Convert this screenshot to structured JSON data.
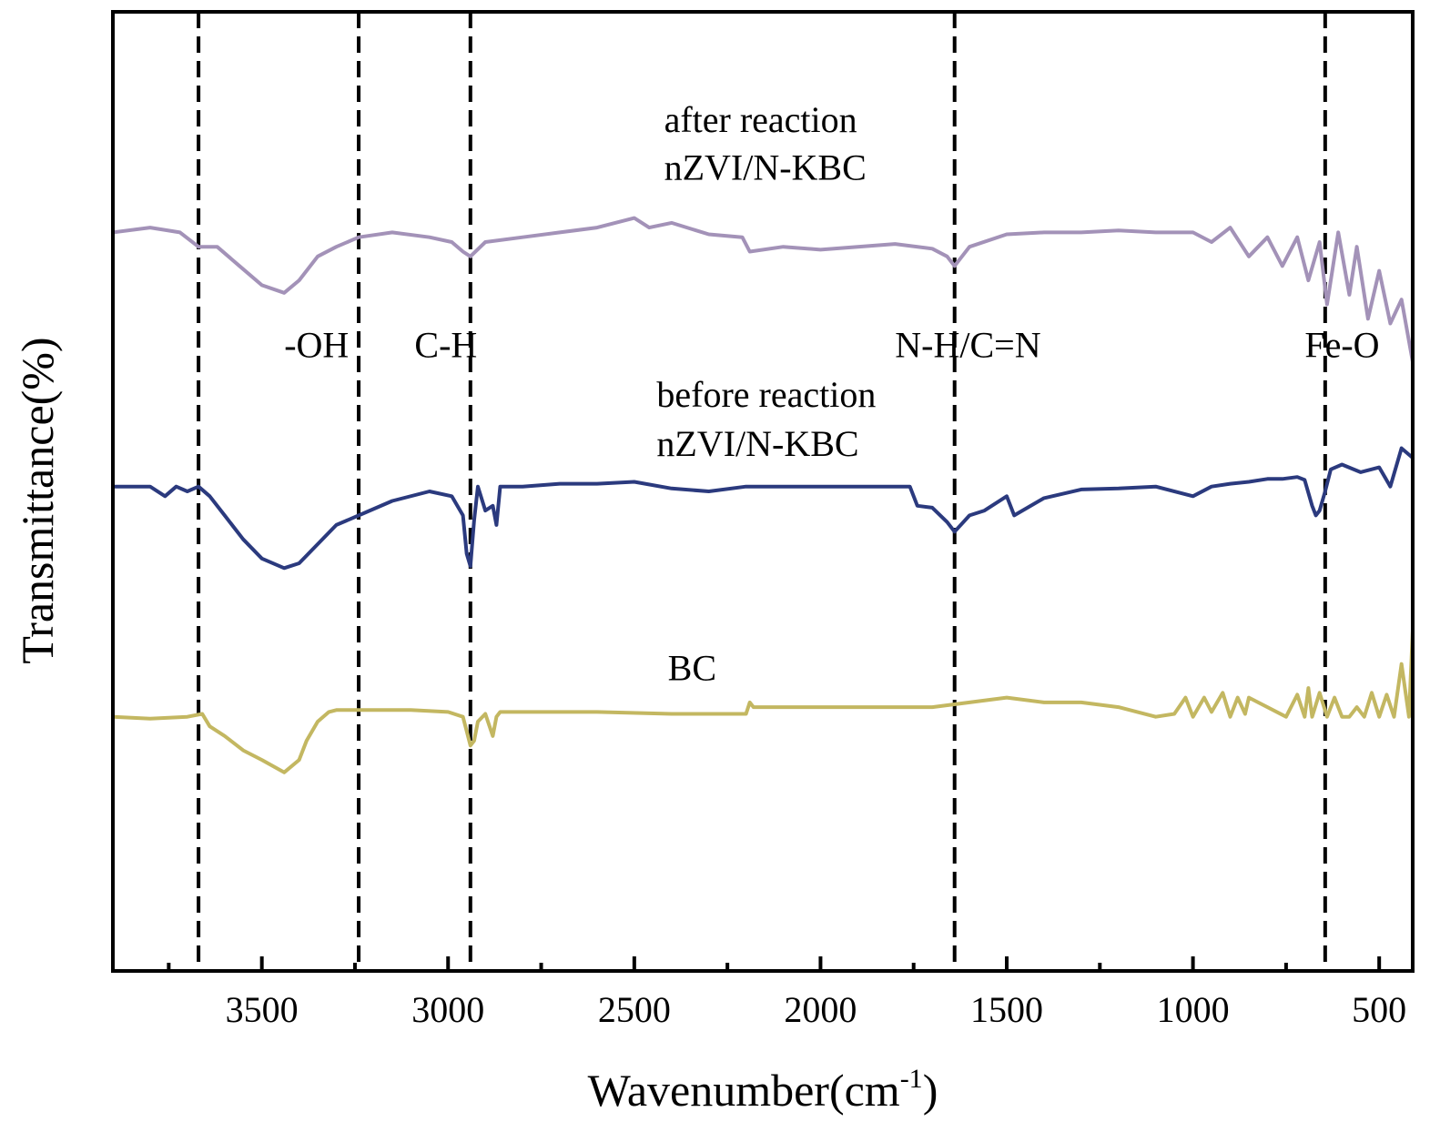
{
  "colors": {
    "after": "#a392b8",
    "before": "#2b3a7e",
    "bc": "#c3b761",
    "axis": "#000000"
  },
  "chart_data": {
    "type": "line",
    "title": "",
    "xlabel_main": "Wavenumber(cm",
    "xlabel_sup": "-1",
    "xlabel_close": ")",
    "ylabel": "Transmittance(%)",
    "xlim": [
      3900,
      410
    ],
    "x_reversed": true,
    "ylim": [
      0,
      100
    ],
    "grid": false,
    "x_ticks": [
      3500,
      3000,
      2500,
      2000,
      1500,
      1000,
      500
    ],
    "x_tick_labels": [
      "3500",
      "3000",
      "2500",
      "2000",
      "1500",
      "1000",
      "500"
    ],
    "x_minor_ticks": [
      3750,
      3250,
      2750,
      2250,
      1750,
      1250,
      750
    ],
    "reference_lines": [
      {
        "x": 3670,
        "label": "-OH"
      },
      {
        "x": 3240,
        "label": "C-H"
      },
      {
        "x": 2940,
        "label": "C-H"
      },
      {
        "x": 1640,
        "label": "N-H/C=N"
      },
      {
        "x": 645,
        "label": "Fe-O"
      }
    ],
    "band_labels": [
      {
        "text": "-OH",
        "x": 3440,
        "y": 64
      },
      {
        "text": "C-H",
        "x": 3090,
        "y": 64
      },
      {
        "text": "N-H/C=N",
        "x": 1800,
        "y": 64
      },
      {
        "text": "Fe-O",
        "x": 700,
        "y": 64
      }
    ],
    "series": [
      {
        "name": "after reaction nZVI/N-KBC",
        "label_lines": [
          "after reaction",
          "nZVI/N-KBC"
        ],
        "label_x": 2420,
        "label_y": [
          87.5,
          82.5
        ],
        "color_key": "after",
        "x": [
          3900,
          3800,
          3720,
          3670,
          3620,
          3560,
          3500,
          3440,
          3400,
          3350,
          3300,
          3240,
          3150,
          3050,
          2990,
          2960,
          2940,
          2900,
          2800,
          2700,
          2600,
          2500,
          2460,
          2400,
          2300,
          2210,
          2190,
          2100,
          2000,
          1900,
          1800,
          1700,
          1660,
          1640,
          1600,
          1500,
          1400,
          1300,
          1200,
          1100,
          1000,
          950,
          900,
          850,
          800,
          760,
          720,
          690,
          660,
          640,
          610,
          580,
          560,
          530,
          500,
          470,
          440,
          410
        ],
        "y": [
          77,
          77.5,
          77,
          75.5,
          75.5,
          73.5,
          71.5,
          70.7,
          72,
          74.5,
          75.5,
          76.5,
          77,
          76.5,
          76,
          75,
          74.5,
          76,
          76.5,
          77,
          77.5,
          78.5,
          77.5,
          78,
          76.8,
          76.5,
          75,
          75.5,
          75.2,
          75.5,
          75.8,
          75.3,
          74.5,
          73.5,
          75.5,
          76.8,
          77,
          77,
          77.2,
          77,
          77,
          76,
          77.5,
          74.5,
          76.5,
          73.5,
          76.5,
          72,
          76,
          69.5,
          77,
          70.5,
          75.5,
          68,
          73,
          67.5,
          70,
          63.5
        ]
      },
      {
        "name": "before reaction nZVI/N-KBC",
        "label_lines": [
          "before reaction",
          "nZVI/N-KBC"
        ],
        "label_x": 2440,
        "label_y": [
          58.8,
          53.7
        ],
        "color_key": "before",
        "x": [
          3900,
          3800,
          3760,
          3730,
          3700,
          3670,
          3640,
          3600,
          3550,
          3500,
          3440,
          3400,
          3350,
          3300,
          3240,
          3150,
          3050,
          2990,
          2960,
          2950,
          2940,
          2930,
          2920,
          2900,
          2880,
          2870,
          2860,
          2850,
          2800,
          2700,
          2600,
          2500,
          2400,
          2300,
          2200,
          2100,
          2000,
          1900,
          1800,
          1760,
          1740,
          1700,
          1660,
          1640,
          1600,
          1560,
          1500,
          1480,
          1400,
          1300,
          1200,
          1100,
          1000,
          950,
          900,
          850,
          800,
          760,
          720,
          700,
          680,
          670,
          660,
          645,
          630,
          600,
          550,
          500,
          470,
          440,
          410
        ],
        "y": [
          50.5,
          50.5,
          49.5,
          50.5,
          50,
          50.5,
          49.5,
          47.5,
          45,
          43,
          42,
          42.5,
          44.5,
          46.5,
          47.5,
          49,
          50,
          49.5,
          47.5,
          43.5,
          42.2,
          47,
          50.5,
          48,
          48.5,
          46.5,
          50.5,
          50.5,
          50.5,
          50.8,
          50.8,
          51,
          50.3,
          50,
          50.5,
          50.5,
          50.5,
          50.5,
          50.5,
          50.5,
          48.5,
          48.3,
          46.8,
          45.8,
          47.5,
          48,
          49.5,
          47.5,
          49.3,
          50.2,
          50.3,
          50.5,
          49.5,
          50.5,
          50.8,
          51,
          51.3,
          51.3,
          51.5,
          51.2,
          48.5,
          47.5,
          48,
          50,
          52.3,
          52.8,
          52,
          52.5,
          50.5,
          54.5,
          53.5
        ]
      },
      {
        "name": "BC",
        "label_lines": [
          "BC"
        ],
        "label_x": 2410,
        "label_y": [
          30.3
        ],
        "color_key": "bc",
        "x": [
          3900,
          3800,
          3700,
          3660,
          3640,
          3600,
          3550,
          3500,
          3440,
          3400,
          3380,
          3350,
          3320,
          3300,
          3200,
          3100,
          3000,
          2960,
          2940,
          2930,
          2920,
          2900,
          2880,
          2870,
          2860,
          2800,
          2600,
          2400,
          2200,
          2190,
          2180,
          2000,
          1800,
          1700,
          1600,
          1500,
          1400,
          1300,
          1200,
          1100,
          1050,
          1020,
          1000,
          970,
          950,
          920,
          900,
          880,
          860,
          850,
          750,
          720,
          700,
          690,
          680,
          660,
          640,
          620,
          600,
          580,
          560,
          540,
          520,
          500,
          480,
          460,
          440,
          420,
          410
        ],
        "y": [
          26.5,
          26.3,
          26.5,
          26.8,
          25.5,
          24.5,
          23,
          22,
          20.7,
          22,
          24,
          26,
          27,
          27.2,
          27.2,
          27.2,
          27,
          26.5,
          23.5,
          24,
          26,
          26.8,
          24.5,
          26.5,
          27,
          27,
          27,
          26.8,
          26.8,
          28,
          27.5,
          27.5,
          27.5,
          27.5,
          28,
          28.5,
          28,
          28,
          27.5,
          26.5,
          26.8,
          28.5,
          26.5,
          28.5,
          27,
          29,
          26.5,
          28.5,
          26.8,
          28.5,
          26.5,
          28.8,
          26.5,
          29.5,
          26.5,
          29,
          26.5,
          28.5,
          26.5,
          26.5,
          27.5,
          26.5,
          29,
          26.5,
          28.8,
          26.5,
          32,
          26.5,
          35.5
        ]
      }
    ]
  }
}
